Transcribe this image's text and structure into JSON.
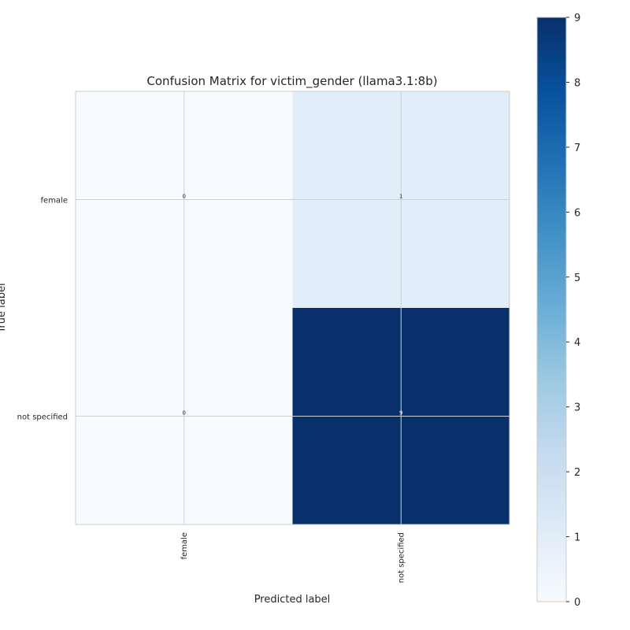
{
  "chart_data": {
    "type": "heatmap",
    "title": "Confusion Matrix for victim_gender (llama3.1:8b)",
    "xlabel": "Predicted label",
    "ylabel": "True label",
    "x_categories": [
      "female",
      "not specified"
    ],
    "y_categories": [
      "female",
      "not specified"
    ],
    "values": [
      [
        0,
        1
      ],
      [
        0,
        9
      ]
    ],
    "cell_labels": [
      [
        "0",
        "1"
      ],
      [
        "0",
        "9"
      ]
    ],
    "colorbar": {
      "range": [
        0,
        9
      ],
      "ticks": [
        "0",
        "1",
        "2",
        "3",
        "4",
        "5",
        "6",
        "7",
        "8",
        "9"
      ],
      "colormap": "Blues"
    },
    "grid": true
  }
}
